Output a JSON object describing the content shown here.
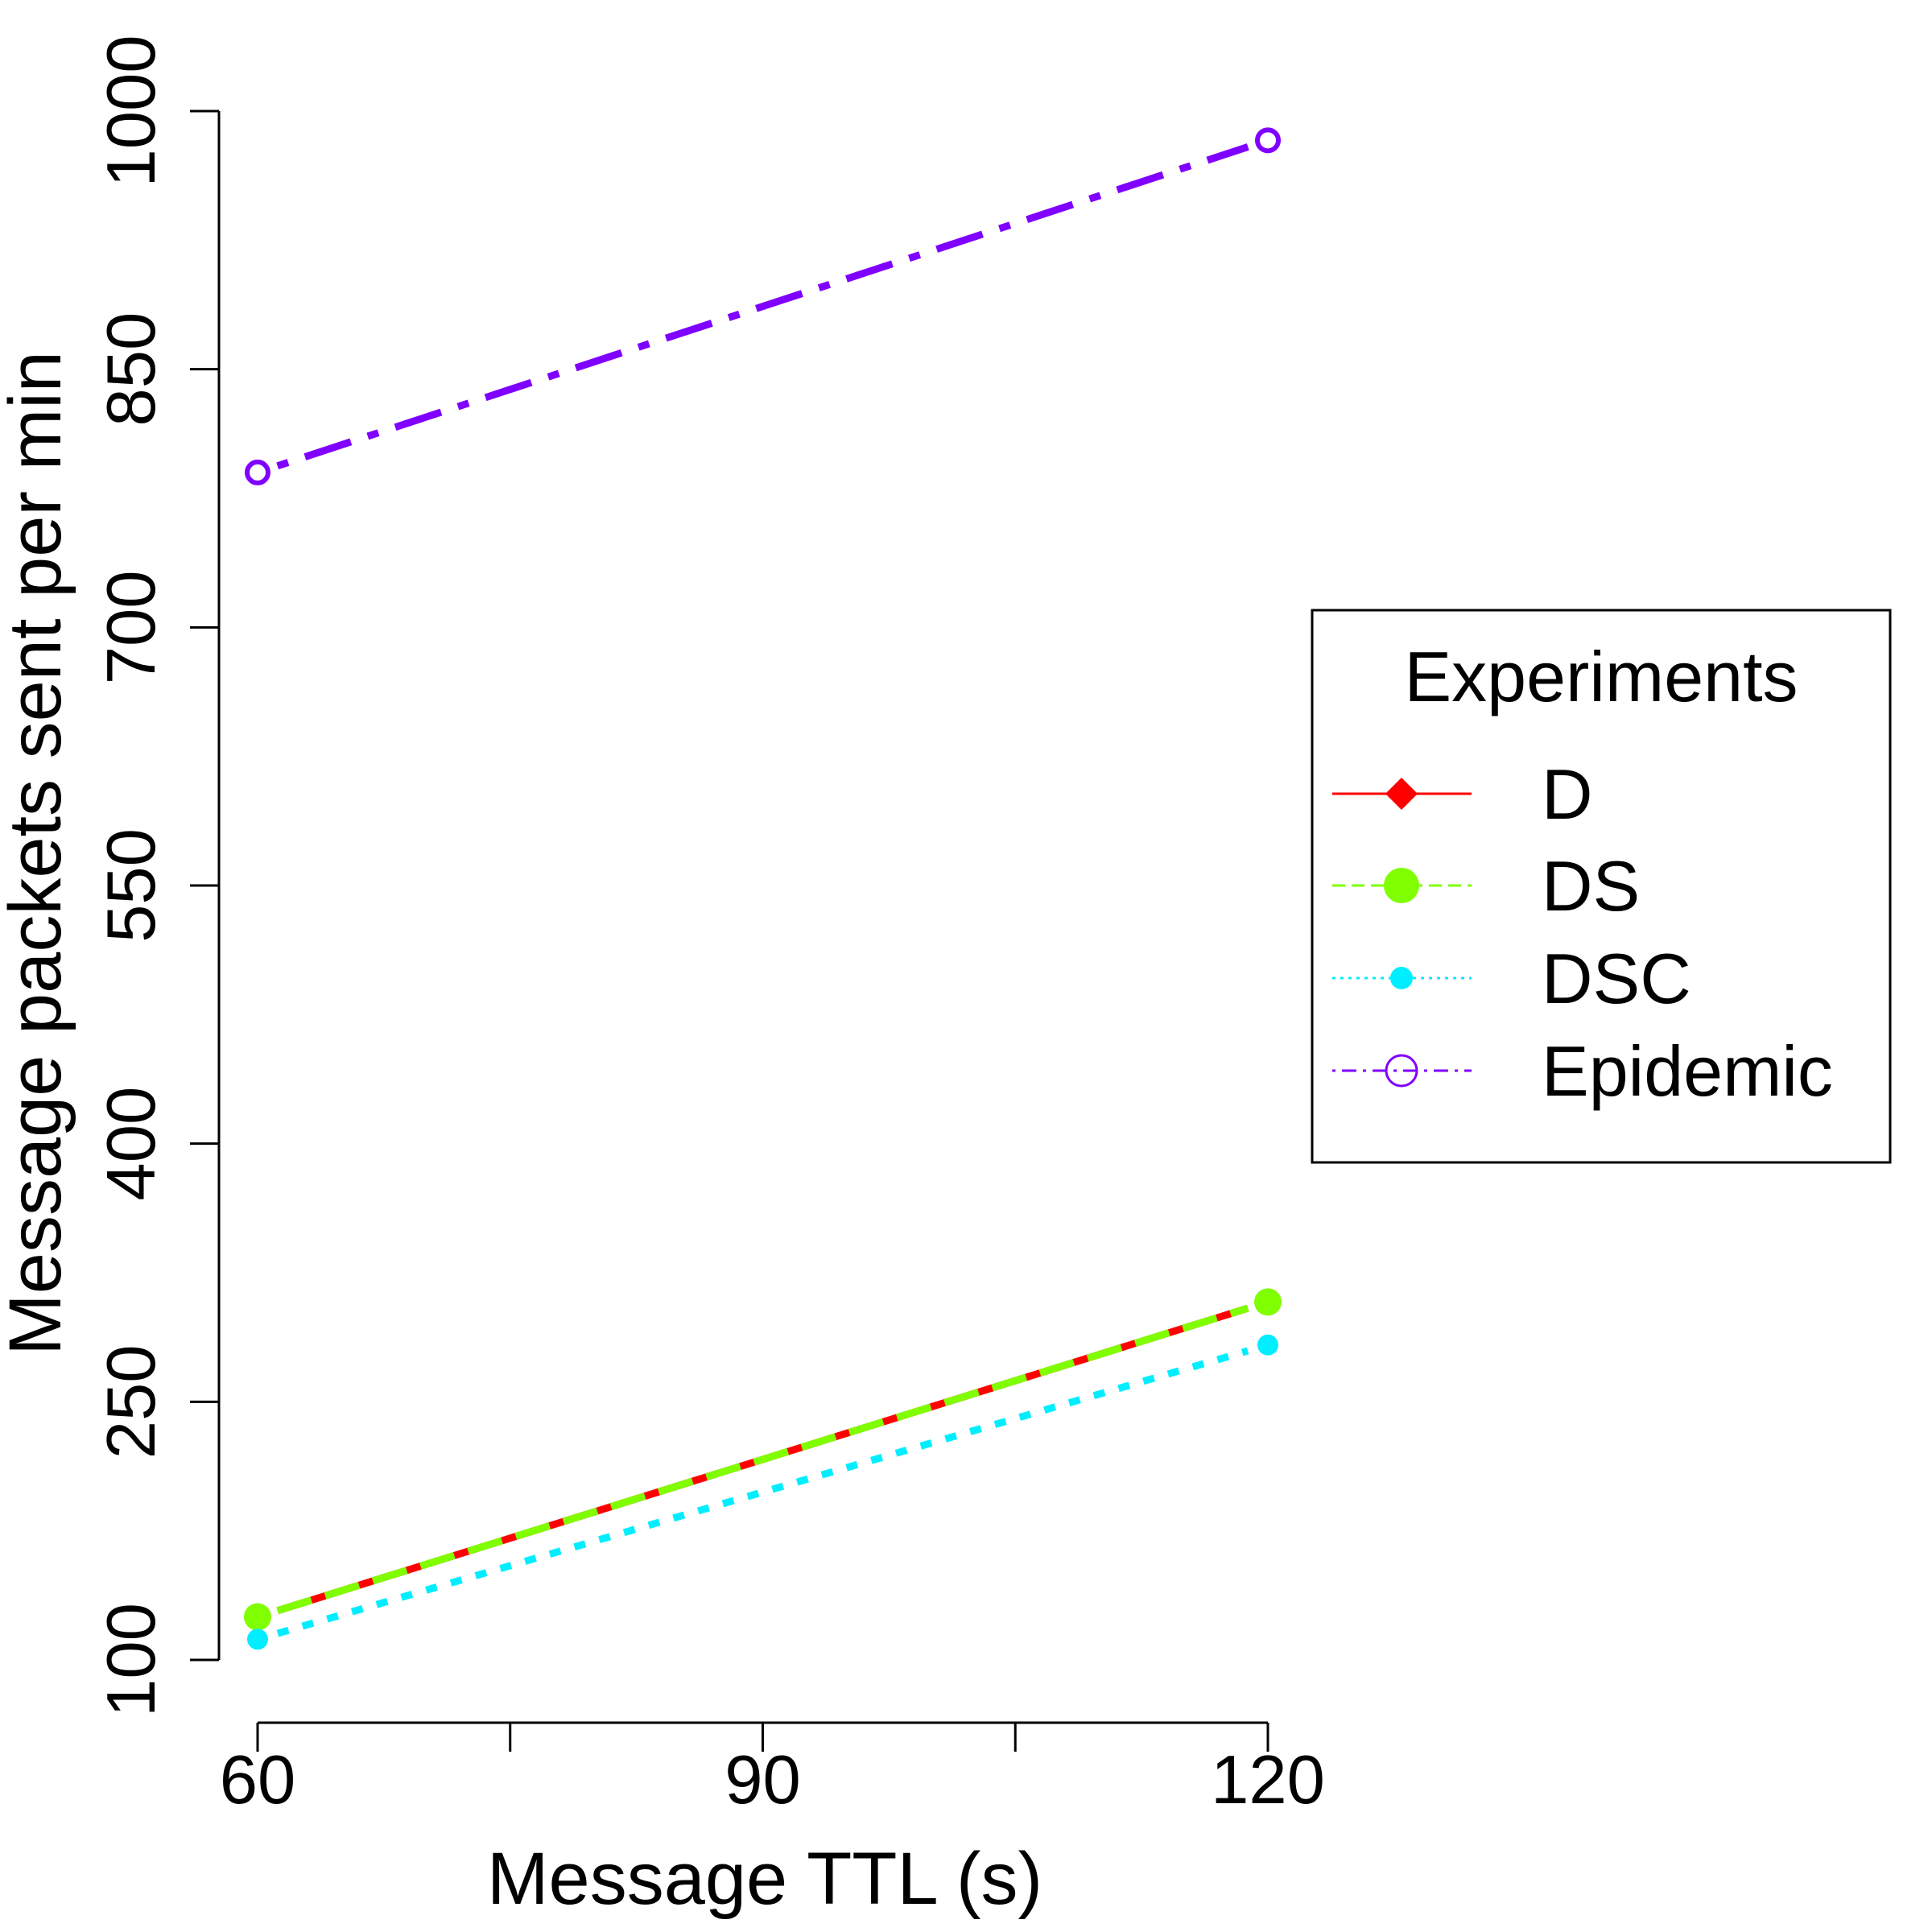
{
  "chart_data": {
    "type": "line",
    "title": "",
    "xlabel": "Message TTL (s)",
    "ylabel": "Message packets sent per min",
    "x": [
      60,
      120
    ],
    "xlim": [
      60,
      120
    ],
    "ylim": [
      100,
      1000
    ],
    "xticks": [
      60,
      75,
      90,
      105,
      120
    ],
    "xtick_labels": [
      "60",
      "",
      "90",
      "",
      "120"
    ],
    "yticks": [
      100,
      250,
      400,
      550,
      700,
      850,
      1000
    ],
    "grid": false,
    "legend": {
      "title": "Experiments",
      "position": "right",
      "entries": [
        "D",
        "DS",
        "DSC",
        "Epidemic"
      ]
    },
    "series": [
      {
        "name": "D",
        "values": [
          125,
          308
        ],
        "color": "#ff0000",
        "line": "solid",
        "marker": "diamond"
      },
      {
        "name": "DS",
        "values": [
          125,
          308
        ],
        "color": "#7fff00",
        "line": "dashed",
        "marker": "filled-circle"
      },
      {
        "name": "DSC",
        "values": [
          112,
          283
        ],
        "color": "#00eeff",
        "line": "dotted",
        "marker": "small-filled-circle"
      },
      {
        "name": "Epidemic",
        "values": [
          790,
          983
        ],
        "color": "#8000ff",
        "line": "dotdash",
        "marker": "open-circle"
      }
    ]
  }
}
